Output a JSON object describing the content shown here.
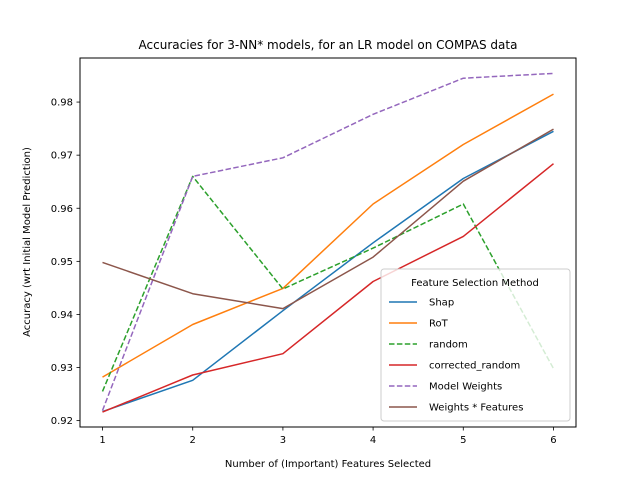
{
  "chart_data": {
    "type": "line",
    "title": "Accuracies for 3-NN* models, for an LR model on COMPAS data",
    "xlabel": "Number of (Important) Features Selected",
    "ylabel": "Accuracy (wrt Initial Model Prediction)",
    "x": [
      1,
      2,
      3,
      4,
      5,
      6
    ],
    "xlim": [
      0.75,
      6.25
    ],
    "ylim": [
      0.9188,
      0.9883
    ],
    "xticks": [
      1,
      2,
      3,
      4,
      5,
      6
    ],
    "yticks": [
      0.92,
      0.93,
      0.94,
      0.95,
      0.96,
      0.97,
      0.98
    ],
    "ytick_labels": [
      "0.92",
      "0.93",
      "0.94",
      "0.95",
      "0.96",
      "0.97",
      "0.98"
    ],
    "grid": false,
    "legend": {
      "title": "Feature Selection Method",
      "position": "lower-right"
    },
    "series": [
      {
        "name": "Shap",
        "color": "#1f77b4",
        "style": "solid",
        "values": [
          0.9217,
          0.9276,
          0.9407,
          0.9535,
          0.9656,
          0.9745
        ]
      },
      {
        "name": "RoT",
        "color": "#ff7f0e",
        "style": "solid",
        "values": [
          0.9282,
          0.9381,
          0.9449,
          0.9608,
          0.972,
          0.9815
        ]
      },
      {
        "name": "random",
        "color": "#2ca02c",
        "style": "dashed",
        "values": [
          0.9255,
          0.966,
          0.9448,
          0.9525,
          0.9608,
          0.9298
        ]
      },
      {
        "name": "corrected_random",
        "color": "#d62728",
        "style": "solid",
        "values": [
          0.9216,
          0.9286,
          0.9326,
          0.9462,
          0.9547,
          0.9684
        ]
      },
      {
        "name": "Model Weights",
        "color": "#9467bd",
        "style": "dashed",
        "values": [
          0.9219,
          0.966,
          0.9695,
          0.9777,
          0.9845,
          0.9854
        ]
      },
      {
        "name": "Weights * Features",
        "color": "#8c564b",
        "style": "solid",
        "values": [
          0.9498,
          0.9439,
          0.9411,
          0.9508,
          0.9651,
          0.9749
        ]
      }
    ]
  }
}
